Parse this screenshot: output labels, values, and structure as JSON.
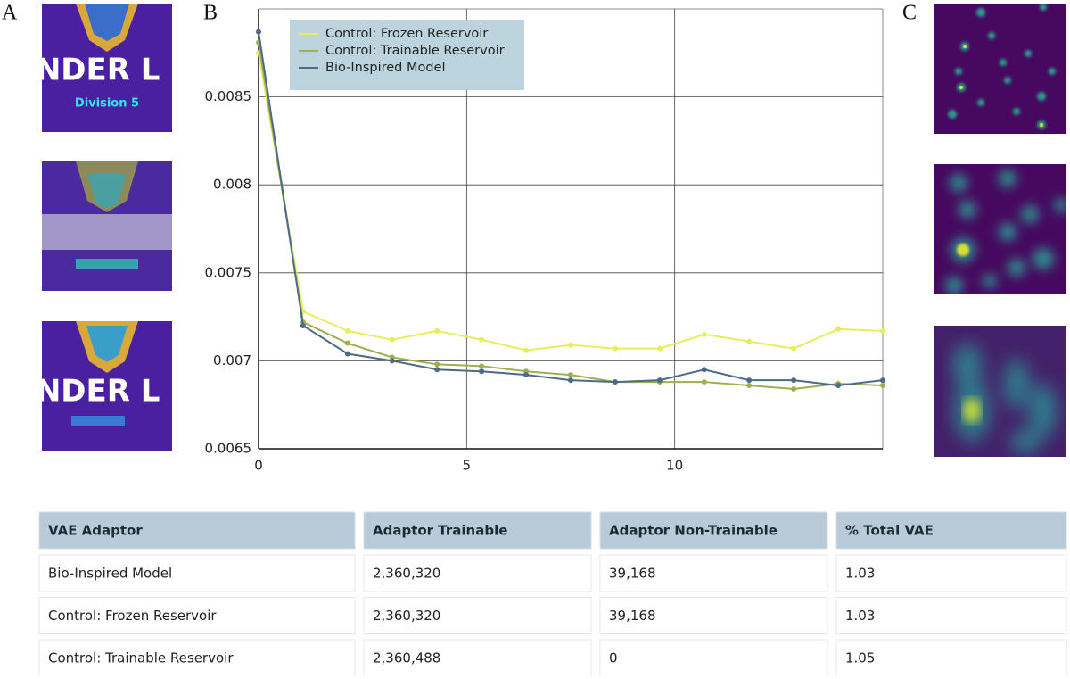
{
  "panel_labels": [
    "A",
    "B",
    "C"
  ],
  "images": {
    "a1": [
      "ENDER L",
      "Division 5"
    ],
    "a3": [
      "ENDER L"
    ]
  },
  "chart_data": {
    "type": "line",
    "x": [
      0,
      1.07,
      2.14,
      3.21,
      4.29,
      5.36,
      6.43,
      7.5,
      8.57,
      9.64,
      10.71,
      11.79,
      12.86,
      13.93,
      15
    ],
    "series": [
      {
        "name": "Control:  Frozen Reservoir",
        "color": "#e6ee5c",
        "values": [
          0.00875,
          0.00728,
          0.00717,
          0.00712,
          0.00717,
          0.00712,
          0.00706,
          0.00709,
          0.00707,
          0.00707,
          0.00715,
          0.00711,
          0.00707,
          0.00718,
          0.00717
        ]
      },
      {
        "name": "Control: Trainable Reservoir",
        "color": "#9fae4f",
        "values": [
          0.00881,
          0.00722,
          0.0071,
          0.00702,
          0.00698,
          0.00697,
          0.00694,
          0.00692,
          0.00688,
          0.00688,
          0.00688,
          0.00686,
          0.00684,
          0.00687,
          0.00686
        ]
      },
      {
        "name": "Bio-Inspired Model",
        "color": "#4d6a88",
        "values": [
          0.00887,
          0.0072,
          0.00704,
          0.007,
          0.00695,
          0.00694,
          0.00692,
          0.00689,
          0.00688,
          0.00689,
          0.00695,
          0.00689,
          0.00689,
          0.00686,
          0.00689
        ]
      }
    ],
    "xlim": [
      0,
      15
    ],
    "xticks": [
      0,
      5,
      10
    ],
    "ylim": [
      0.0065,
      0.009
    ],
    "yticks": [
      0.0065,
      0.007,
      0.0075,
      0.008,
      0.0085
    ],
    "grid": true,
    "legend": "upper left"
  },
  "table": {
    "header": [
      "VAE Adaptor",
      "Adaptor Trainable",
      "Adaptor Non-Trainable",
      "% Total VAE"
    ],
    "rows": [
      [
        "Bio-Inspired Model",
        "2,360,320",
        "39,168",
        "1.03"
      ],
      [
        "Control: Frozen Reservoir",
        "2,360,320",
        "39,168",
        "1.03"
      ],
      [
        "Control: Trainable Reservoir",
        "2,360,488",
        "0",
        "1.05"
      ]
    ]
  }
}
